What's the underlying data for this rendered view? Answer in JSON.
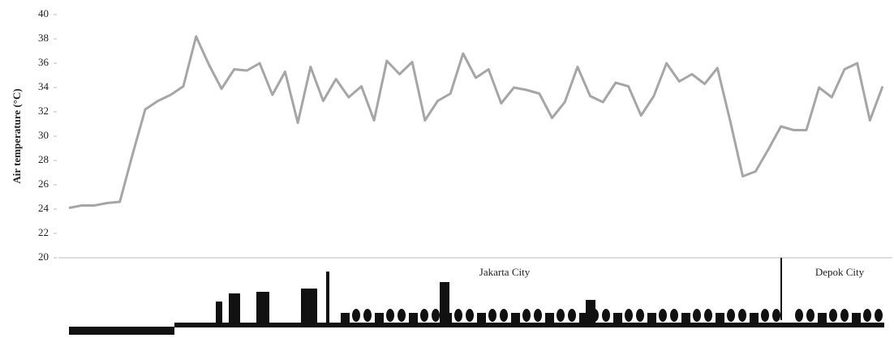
{
  "chart_data": {
    "type": "line",
    "y_label": "Air temperature (°C)",
    "values": [
      24.1,
      24.3,
      24.3,
      24.5,
      24.6,
      28.5,
      32.2,
      32.9,
      33.4,
      34.1,
      38.2,
      35.9,
      33.9,
      35.5,
      35.4,
      36.0,
      33.4,
      35.3,
      31.1,
      35.7,
      32.9,
      34.7,
      33.2,
      34.1,
      31.3,
      36.2,
      35.1,
      36.1,
      31.3,
      32.9,
      33.5,
      36.8,
      34.8,
      35.5,
      32.7,
      34.0,
      33.8,
      33.5,
      31.5,
      32.8,
      35.7,
      33.3,
      32.8,
      34.4,
      34.1,
      31.7,
      33.3,
      36.0,
      34.5,
      35.1,
      34.3,
      35.6,
      31.3,
      26.7,
      27.1,
      28.9,
      30.8,
      30.5,
      30.5,
      34.0,
      33.2,
      35.5,
      36.0,
      31.3,
      34.1
    ],
    "color": "#a6a6a6",
    "ylim": [
      20,
      40
    ],
    "yticks": [
      20,
      22,
      24,
      26,
      28,
      30,
      32,
      34,
      36,
      38,
      40
    ],
    "grid": false,
    "annotations": [
      "Jakarta City",
      "Depok City"
    ]
  }
}
